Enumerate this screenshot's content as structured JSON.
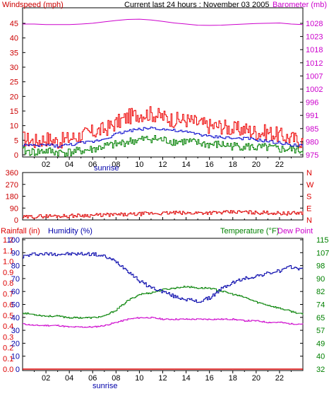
{
  "title": "Current last 24 hours : November 03 2005",
  "colors": {
    "wind_axis": "#cc0000",
    "barometer": "#cc00cc",
    "wind_gust": "#ee0000",
    "wind_avg": "#0000cc",
    "wind_speed": "#008000",
    "direction": "#dd0000",
    "humidity": "#0000aa",
    "temperature": "#008000",
    "dew_point": "#cc00cc",
    "rainfall": "#dd0000",
    "frame": "#000000",
    "sunrise": "#0000aa"
  },
  "sunrise_label": "sunrise",
  "chart_data": [
    {
      "type": "line",
      "panel": "wind-barometer",
      "x_ticks": [
        "02",
        "04",
        "06",
        "08",
        "10",
        "12",
        "14",
        "16",
        "18",
        "20",
        "22"
      ],
      "sunrise_hour": 6.8,
      "left_axis": {
        "label": "Windspeed (mph)",
        "ticks": [
          "0",
          "5",
          "10",
          "15",
          "20",
          "25",
          "30",
          "35",
          "40",
          "45"
        ],
        "range": [
          0,
          48.4
        ]
      },
      "right_axis": {
        "label": "Barometer (mb)",
        "ticks": [
          "975",
          "980",
          "985",
          "991",
          "996",
          "1002",
          "1007",
          "1012",
          "1018",
          "1023",
          "1028"
        ],
        "range": [
          974,
          1029
        ]
      },
      "hours": [
        0,
        1,
        2,
        3,
        4,
        5,
        6,
        7,
        8,
        9,
        10,
        11,
        12,
        13,
        14,
        15,
        16,
        17,
        18,
        19,
        20,
        21,
        22,
        23,
        24
      ],
      "series": [
        {
          "name": "Barometer (mb)",
          "axis": "right",
          "values": [
            1023,
            1023,
            1022.8,
            1022.8,
            1022.8,
            1023,
            1023.3,
            1023.8,
            1024.3,
            1024.7,
            1024.8,
            1024.5,
            1024,
            1023.4,
            1023,
            1022.6,
            1022.5,
            1022.6,
            1022.8,
            1023,
            1023.2,
            1023.3,
            1023.4,
            1023,
            1022.8
          ]
        },
        {
          "axis": "left",
          "values": [
            4,
            3.5,
            4,
            3.5,
            4,
            4.5,
            5,
            6,
            7.5,
            8.5,
            9,
            9.5,
            9,
            8.5,
            8,
            7.5,
            6.5,
            6.5,
            6,
            6,
            5.5,
            5,
            4.5,
            4,
            3.5
          ]
        },
        {
          "axis": "left",
          "values": [
            2,
            1.5,
            2,
            1.5,
            1.5,
            2,
            2.5,
            3.5,
            4,
            5,
            5.5,
            6,
            5.5,
            5,
            5,
            4.5,
            4,
            4,
            3.5,
            3.5,
            3,
            3,
            2.5,
            2.5,
            2
          ]
        },
        {
          "axis": "left",
          "values": [
            6,
            5,
            6,
            5,
            6,
            7,
            8,
            9,
            11,
            13,
            14,
            14,
            13,
            12,
            12,
            11,
            10,
            10,
            9,
            9,
            8,
            8,
            7,
            6,
            5
          ]
        }
      ]
    },
    {
      "type": "line",
      "panel": "wind-direction",
      "left_axis": {
        "ticks": [
          "0",
          "90",
          "180",
          "270",
          "360"
        ],
        "range": [
          0,
          360
        ]
      },
      "right_axis": {
        "ticks": [
          "N",
          "E",
          "S",
          "W",
          "N"
        ]
      },
      "hours": [
        0,
        1,
        2,
        3,
        4,
        5,
        6,
        7,
        8,
        9,
        10,
        11,
        12,
        13,
        14,
        15,
        16,
        17,
        18,
        19,
        20,
        21,
        22,
        23,
        24
      ],
      "series": [
        {
          "axis": "left",
          "values": [
            20,
            25,
            30,
            30,
            30,
            35,
            35,
            38,
            40,
            40,
            45,
            50,
            50,
            55,
            50,
            55,
            55,
            55,
            60,
            60,
            55,
            55,
            50,
            50,
            55
          ]
        }
      ]
    },
    {
      "type": "line",
      "panel": "humidity-temperature",
      "x_ticks": [
        "02",
        "04",
        "06",
        "08",
        "10",
        "12",
        "14",
        "16",
        "18",
        "20",
        "22"
      ],
      "sunrise_hour": 6.8,
      "labels": {
        "rainfall": "Rainfall (in)",
        "humidity": "Humidity (%)",
        "temperature": "Temperature (°F)",
        "dew_point": "Dew Point"
      },
      "rain_axis": {
        "ticks": [
          "0.0",
          "0.1",
          "0.2",
          "0.3",
          "0.4",
          "0.5",
          "0.6",
          "0.7",
          "0.8",
          "0.9",
          "1.0",
          "1.1",
          "1.2"
        ],
        "range": [
          0,
          1.2
        ]
      },
      "humidity_axis": {
        "ticks": [
          "0",
          "10",
          "20",
          "30",
          "40",
          "50",
          "60",
          "70",
          "80",
          "90",
          "100"
        ],
        "range": [
          0,
          100
        ]
      },
      "temperature_axis": {
        "ticks": [
          "32",
          "40",
          "49",
          "57",
          "65",
          "74",
          "82",
          "90",
          "98",
          "107",
          "115"
        ],
        "range": [
          32,
          115
        ]
      },
      "hours": [
        0,
        1,
        2,
        3,
        4,
        5,
        6,
        7,
        8,
        9,
        10,
        11,
        12,
        13,
        14,
        15,
        16,
        17,
        18,
        19,
        20,
        21,
        22,
        23,
        24
      ],
      "series": [
        {
          "name": "Humidity (%)",
          "axis": "humidity",
          "values": [
            87,
            89,
            89,
            89,
            89,
            89,
            89,
            87,
            83,
            76,
            68,
            63,
            60,
            56,
            54,
            52,
            55,
            62,
            67,
            70,
            72,
            74,
            76,
            79,
            77
          ]
        },
        {
          "axis": "temperature",
          "values": [
            68,
            67,
            66,
            66,
            65,
            65,
            65,
            66,
            70,
            76,
            80,
            81,
            83,
            84,
            85,
            84,
            84,
            82,
            80,
            78,
            75,
            73,
            71,
            69,
            67
          ]
        },
        {
          "name": "Dew Point",
          "axis": "temperature",
          "values": [
            61,
            60,
            60,
            60,
            59,
            59,
            59,
            60,
            62,
            64,
            65,
            65,
            64,
            64,
            64,
            64,
            64,
            64,
            64,
            63,
            63,
            62,
            62,
            61,
            61
          ]
        },
        {
          "name": "Rainfall (in)",
          "axis": "rain",
          "values": [
            0,
            0,
            0,
            0,
            0,
            0,
            0,
            0,
            0,
            0,
            0,
            0,
            0,
            0,
            0,
            0,
            0,
            0,
            0,
            0,
            0,
            0,
            0,
            0,
            0
          ]
        }
      ]
    }
  ]
}
